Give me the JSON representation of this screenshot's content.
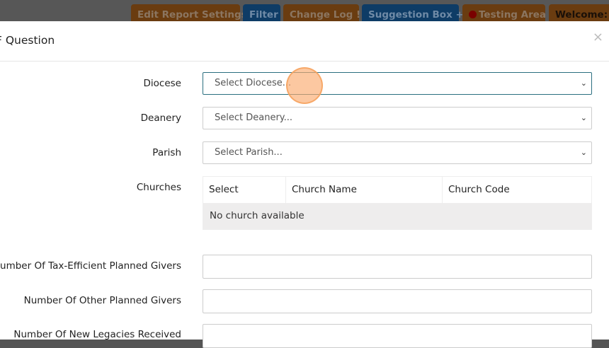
{
  "topbar": {
    "buttons": [
      {
        "label": "Edit Report Settings",
        "color": "#6a3c10"
      },
      {
        "label": "Filter",
        "color": "#0e3c66"
      },
      {
        "label": "Change Log",
        "icon": "exclamation-icon",
        "icon_glyph": "!"
      },
      {
        "label": "Suggestion Box",
        "icon": "plus-icon",
        "icon_glyph": "+"
      },
      {
        "label": "Testing Area",
        "icon": "red-dot-icon"
      },
      {
        "label": "Welcome:"
      }
    ]
  },
  "modal": {
    "title": "F Question",
    "close_glyph": "×",
    "fields": {
      "diocese": {
        "label": "Diocese",
        "placeholder": "Select Diocese..."
      },
      "deanery": {
        "label": "Deanery",
        "placeholder": "Select Deanery..."
      },
      "parish": {
        "label": "Parish",
        "placeholder": "Select Parish..."
      },
      "churches": {
        "label": "Churches",
        "columns": [
          "Select",
          "Church Name",
          "Church Code"
        ],
        "empty_text": "No church available"
      },
      "tax_efficient": {
        "label": "Number Of Tax-Efficient Planned Givers",
        "value": ""
      },
      "other_planned": {
        "label": "Number Of Other Planned Givers",
        "value": ""
      },
      "new_legacies": {
        "label": "Number Of New Legacies Received",
        "value": ""
      }
    }
  }
}
